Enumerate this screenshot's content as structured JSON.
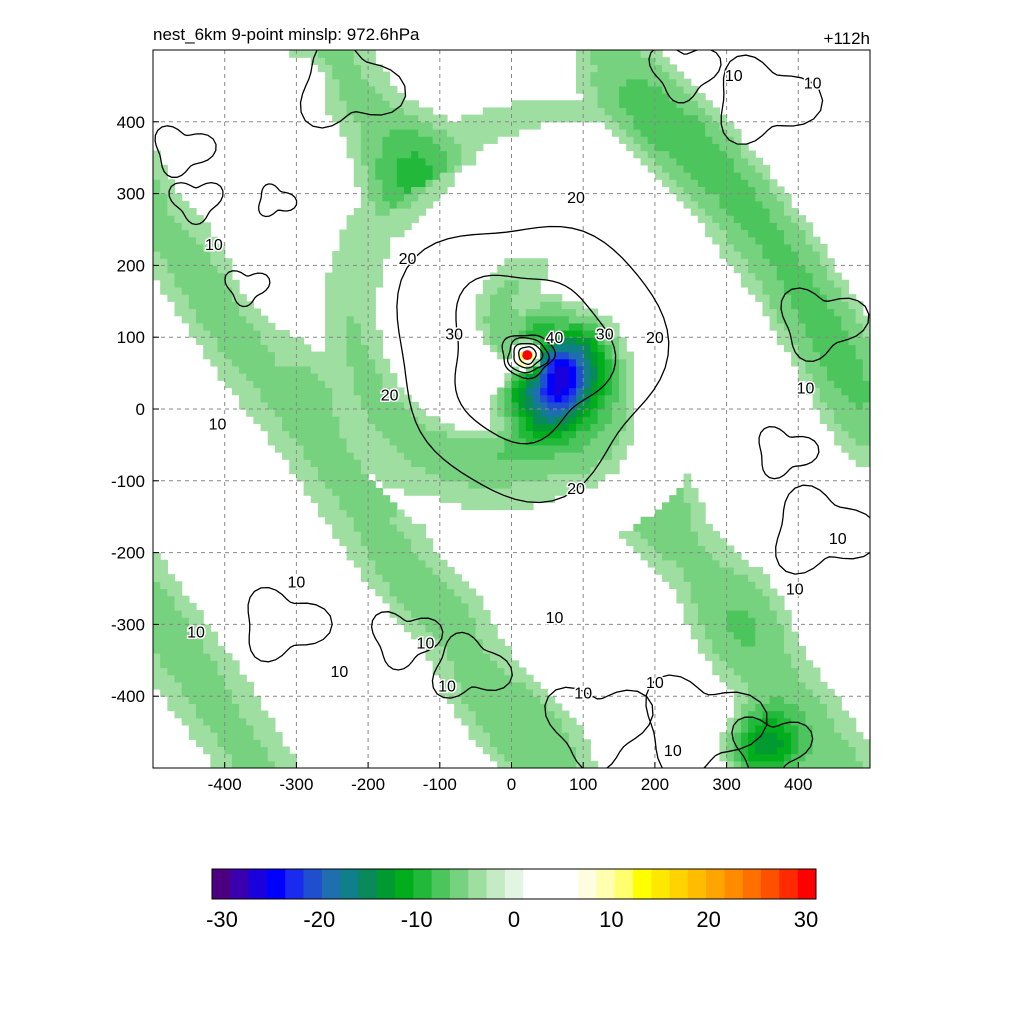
{
  "title_left": "nest_6km  9-point minslp: 972.6hPa",
  "title_right": "+112h",
  "chart_data": {
    "type": "heatmap",
    "title": "nest_6km  9-point minslp: 972.6hPa",
    "time_label": "+112h",
    "xlim": [
      -500,
      500
    ],
    "ylim": [
      -500,
      500
    ],
    "x_ticks": [
      -400,
      -300,
      -200,
      -100,
      0,
      100,
      200,
      300,
      400
    ],
    "y_ticks": [
      400,
      300,
      200,
      100,
      0,
      -100,
      -200,
      -300,
      -400
    ],
    "grid": true,
    "storm_center": {
      "x": 22,
      "y": 75
    },
    "shading": {
      "min": -30,
      "max": 30,
      "colorbar_ticks": [
        -30,
        -20,
        -10,
        0,
        10,
        20,
        30
      ],
      "palette": [
        "#4b0082",
        "#3a00b0",
        "#1a00dd",
        "#0000ff",
        "#1a2aef",
        "#1f4fcf",
        "#1f6fb0",
        "#0f7f8a",
        "#0a8a5a",
        "#009a30",
        "#00ad1a",
        "#22b93a",
        "#4cc65c",
        "#76d27e",
        "#9edea0",
        "#c4ebc4",
        "#e2f5e2",
        "#ffffff",
        "#ffffff",
        "#ffffff",
        "#fffde0",
        "#ffffb0",
        "#ffff70",
        "#ffff00",
        "#ffe800",
        "#ffd200",
        "#ffbc00",
        "#ffa400",
        "#ff8c00",
        "#ff7000",
        "#ff5000",
        "#ff2a00",
        "#ff0000"
      ]
    },
    "contours": [
      {
        "level": 10,
        "label": "10"
      },
      {
        "level": 20,
        "label": "20"
      },
      {
        "level": 30,
        "label": "30"
      },
      {
        "level": 40,
        "label": "40"
      }
    ],
    "contour_labels": [
      {
        "text": "10",
        "x": -415,
        "y": 230
      },
      {
        "text": "10",
        "x": -410,
        "y": -20
      },
      {
        "text": "10",
        "x": -300,
        "y": -240
      },
      {
        "text": "10",
        "x": -440,
        "y": -310
      },
      {
        "text": "10",
        "x": -240,
        "y": -365
      },
      {
        "text": "10",
        "x": -120,
        "y": -325
      },
      {
        "text": "10",
        "x": -90,
        "y": -385
      },
      {
        "text": "10",
        "x": 60,
        "y": -290
      },
      {
        "text": "10",
        "x": 100,
        "y": -395
      },
      {
        "text": "10",
        "x": 200,
        "y": -380
      },
      {
        "text": "10",
        "x": 225,
        "y": -475
      },
      {
        "text": "10",
        "x": 395,
        "y": -250
      },
      {
        "text": "10",
        "x": 455,
        "y": -180
      },
      {
        "text": "10",
        "x": 410,
        "y": 30
      },
      {
        "text": "10",
        "x": 310,
        "y": 465
      },
      {
        "text": "10",
        "x": 420,
        "y": 455
      },
      {
        "text": "20",
        "x": 90,
        "y": 295
      },
      {
        "text": "20",
        "x": -145,
        "y": 210
      },
      {
        "text": "20",
        "x": -170,
        "y": 20
      },
      {
        "text": "20",
        "x": 90,
        "y": -110
      },
      {
        "text": "20",
        "x": 200,
        "y": 100
      },
      {
        "text": "30",
        "x": -80,
        "y": 105
      },
      {
        "text": "30",
        "x": 130,
        "y": 105
      },
      {
        "text": "40",
        "x": 60,
        "y": 100
      }
    ]
  }
}
